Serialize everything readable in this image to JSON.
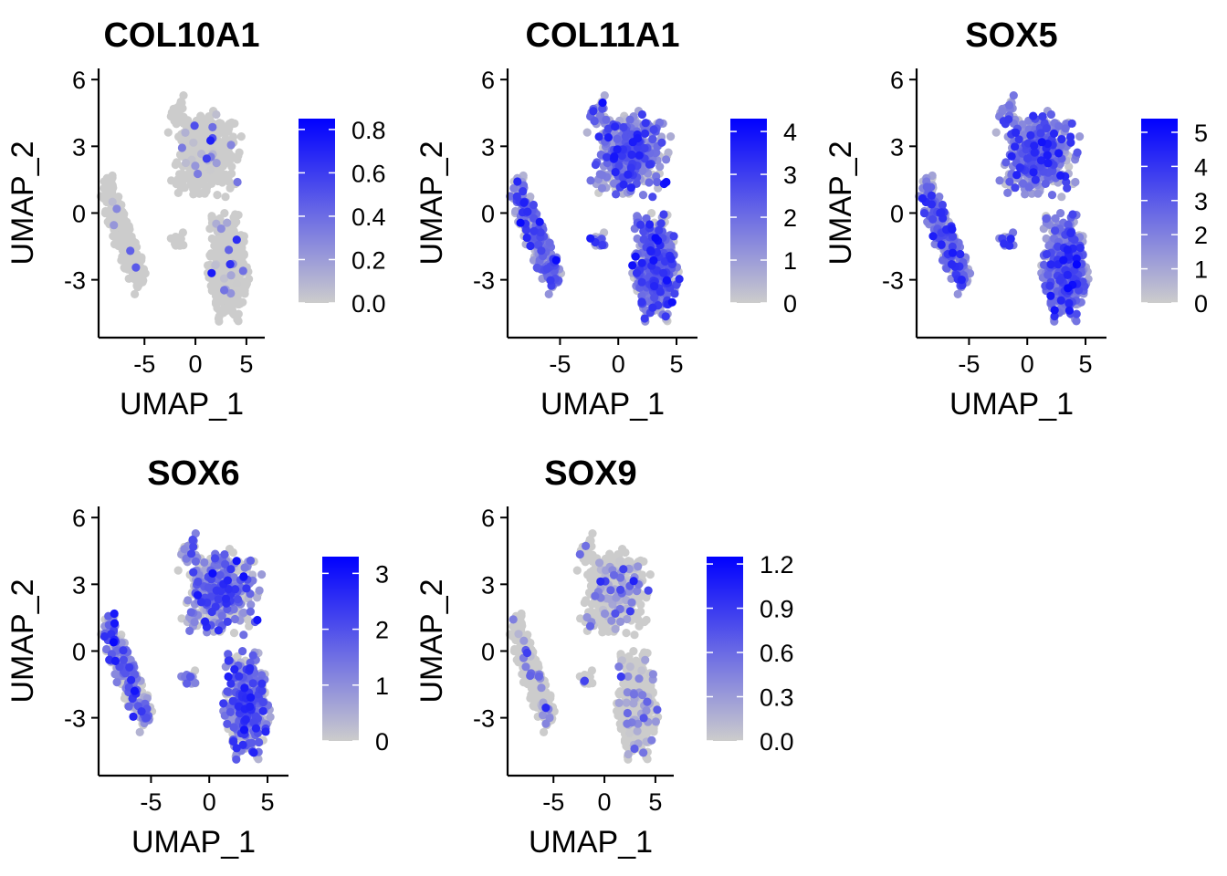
{
  "colors": {
    "low": "#cccccc",
    "high": "#0000ff"
  },
  "chart_data": [
    {
      "type": "scatter",
      "title": "COL10A1",
      "xlabel": "UMAP_1",
      "ylabel": "UMAP_2",
      "xlim": [
        -9.5,
        6.8
      ],
      "ylim": [
        -5.6,
        6.5
      ],
      "xticks": [
        -5,
        0,
        5
      ],
      "yticks": [
        -3,
        0,
        3,
        6
      ],
      "xtick_labels": [
        "-5",
        "0",
        "5"
      ],
      "ytick_labels": [
        "-3",
        "0",
        "3",
        "6"
      ],
      "legend": {
        "position": "right",
        "min": 0,
        "max": 0.85,
        "ticks": [
          0,
          0.2,
          0.4,
          0.6,
          0.8
        ],
        "tick_labels": [
          "0.0",
          "0.2",
          "0.4",
          "0.6",
          "0.8"
        ]
      },
      "expression_fraction": 0.04,
      "expression_scale": 0.4,
      "seed": 11
    },
    {
      "type": "scatter",
      "title": "COL11A1",
      "xlabel": "UMAP_1",
      "ylabel": "UMAP_2",
      "xlim": [
        -9.5,
        6.8
      ],
      "ylim": [
        -5.6,
        6.5
      ],
      "xticks": [
        -5,
        0,
        5
      ],
      "yticks": [
        -3,
        0,
        3,
        6
      ],
      "xtick_labels": [
        "-5",
        "0",
        "5"
      ],
      "ytick_labels": [
        "-3",
        "0",
        "3",
        "6"
      ],
      "legend": {
        "position": "right",
        "min": 0,
        "max": 4.3,
        "ticks": [
          0,
          1,
          2,
          3,
          4
        ],
        "tick_labels": [
          "0",
          "1",
          "2",
          "3",
          "4"
        ]
      },
      "expression_fraction": 0.92,
      "expression_scale": 0.6,
      "seed": 23
    },
    {
      "type": "scatter",
      "title": "SOX5",
      "xlabel": "UMAP_1",
      "ylabel": "UMAP_2",
      "xlim": [
        -9.5,
        6.8
      ],
      "ylim": [
        -5.6,
        6.5
      ],
      "xticks": [
        -5,
        0,
        5
      ],
      "yticks": [
        -3,
        0,
        3,
        6
      ],
      "xtick_labels": [
        "-5",
        "0",
        "5"
      ],
      "ytick_labels": [
        "-3",
        "0",
        "3",
        "6"
      ],
      "legend": {
        "position": "right",
        "min": 0,
        "max": 5.4,
        "ticks": [
          0,
          1,
          2,
          3,
          4,
          5
        ],
        "tick_labels": [
          "0",
          "1",
          "2",
          "3",
          "4",
          "5"
        ]
      },
      "expression_fraction": 0.95,
      "expression_scale": 0.6,
      "seed": 37
    },
    {
      "type": "scatter",
      "title": "SOX6",
      "xlabel": "UMAP_1",
      "ylabel": "UMAP_2",
      "xlim": [
        -9.5,
        6.8
      ],
      "ylim": [
        -5.6,
        6.5
      ],
      "xticks": [
        -5,
        0,
        5
      ],
      "yticks": [
        -3,
        0,
        3,
        6
      ],
      "xtick_labels": [
        "-5",
        "0",
        "5"
      ],
      "ytick_labels": [
        "-3",
        "0",
        "3",
        "6"
      ],
      "legend": {
        "position": "right",
        "min": 0,
        "max": 3.3,
        "ticks": [
          0,
          1,
          2,
          3
        ],
        "tick_labels": [
          "0",
          "1",
          "2",
          "3"
        ]
      },
      "expression_fraction": 0.65,
      "expression_scale": 0.55,
      "seed": 41
    },
    {
      "type": "scatter",
      "title": "SOX9",
      "xlabel": "UMAP_1",
      "ylabel": "UMAP_2",
      "xlim": [
        -9.5,
        6.8
      ],
      "ylim": [
        -5.6,
        6.5
      ],
      "xticks": [
        -5,
        0,
        5
      ],
      "yticks": [
        -3,
        0,
        3,
        6
      ],
      "xtick_labels": [
        "-5",
        "0",
        "5"
      ],
      "ytick_labels": [
        "-3",
        "0",
        "3",
        "6"
      ],
      "legend": {
        "position": "right",
        "min": 0,
        "max": 1.25,
        "ticks": [
          0,
          0.3,
          0.6,
          0.9,
          1.2
        ],
        "tick_labels": [
          "0.0",
          "0.3",
          "0.6",
          "0.9",
          "1.2"
        ]
      },
      "expression_fraction": 0.12,
      "expression_scale": 0.5,
      "seed": 53
    }
  ]
}
